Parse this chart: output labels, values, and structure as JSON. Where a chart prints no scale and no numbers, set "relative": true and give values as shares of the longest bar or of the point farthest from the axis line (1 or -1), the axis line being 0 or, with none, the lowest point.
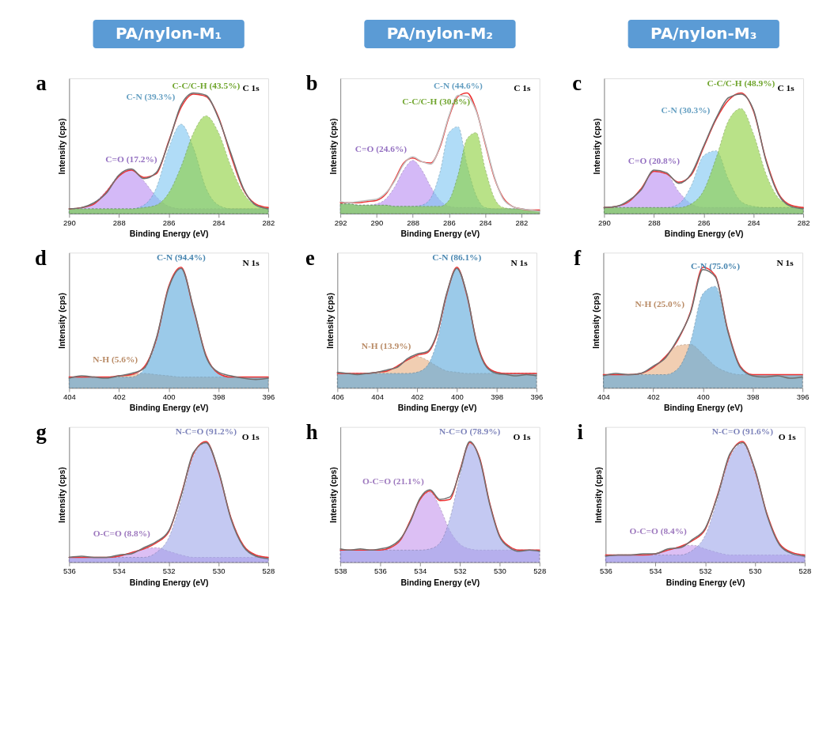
{
  "chart_data": [
    {
      "type": "area",
      "title": "PA/nylon-M₁",
      "xlabel": "Binding Energy (eV)",
      "ylabel": "Intensity (cps)",
      "relative": true,
      "grid": false,
      "legend": false,
      "xlim": [
        290,
        282
      ],
      "xticks": [
        290,
        288,
        286,
        284,
        282
      ],
      "x": [
        290,
        289.5,
        289,
        288.5,
        288,
        287.5,
        287,
        286.5,
        286,
        285.5,
        285,
        284.5,
        284,
        283.5,
        283,
        282.5,
        282
      ],
      "series": [
        {
          "type": "area",
          "color": "#b98cf2",
          "values": [
            0.04,
            0.05,
            0.09,
            0.19,
            0.32,
            0.37,
            0.27,
            0.14,
            0.06,
            0.04,
            0.04,
            0.04,
            0.04,
            0.04,
            0.04,
            0.04,
            0.04
          ]
        },
        {
          "type": "area",
          "color": "#7cc6f2",
          "values": [
            0.04,
            0.04,
            0.04,
            0.04,
            0.04,
            0.04,
            0.07,
            0.21,
            0.54,
            0.74,
            0.54,
            0.21,
            0.07,
            0.04,
            0.04,
            0.04,
            0.04
          ]
        },
        {
          "type": "area",
          "color": "#8ccf3a",
          "values": [
            0.04,
            0.04,
            0.04,
            0.04,
            0.04,
            0.04,
            0.05,
            0.07,
            0.17,
            0.39,
            0.67,
            0.81,
            0.67,
            0.39,
            0.17,
            0.07,
            0.05
          ]
        },
        {
          "type": "line",
          "color": "#ee3333",
          "values": [
            0.04,
            0.05,
            0.08,
            0.18,
            0.31,
            0.36,
            0.3,
            0.33,
            0.6,
            0.88,
            0.99,
            0.97,
            0.8,
            0.48,
            0.2,
            0.08,
            0.05
          ]
        },
        {
          "type": "line",
          "color": "#707070",
          "values": [
            0.04,
            0.05,
            0.09,
            0.17,
            0.32,
            0.37,
            0.29,
            0.34,
            0.59,
            0.9,
            1.0,
            0.98,
            0.79,
            0.5,
            0.21,
            0.07,
            0.04
          ]
        }
      ],
      "annotations": [
        "a",
        "C 1s",
        "C=O (17.2%)",
        "C-N (39.3%)",
        "C-C/C-H (43.5%)"
      ]
    },
    {
      "type": "area",
      "title": "PA/nylon-M₂",
      "xlabel": "Binding Energy (eV)",
      "ylabel": "Intensity (cps)",
      "relative": true,
      "grid": false,
      "legend": false,
      "xlim": [
        292,
        281
      ],
      "xticks": [
        292,
        290,
        288,
        286,
        284,
        282
      ],
      "x": [
        292,
        291.5,
        291,
        290.5,
        290,
        289.5,
        289,
        288.5,
        288,
        287.5,
        287,
        286.5,
        286,
        285.5,
        285,
        284.5,
        284,
        283.5,
        283,
        282.5,
        282,
        281.5,
        281
      ],
      "series": [
        {
          "type": "area",
          "color": "#b98cf2",
          "values": [
            0.08,
            0.08,
            0.07,
            0.07,
            0.08,
            0.12,
            0.22,
            0.36,
            0.44,
            0.36,
            0.22,
            0.11,
            0.06,
            0.05,
            0.05,
            0.05,
            0.04,
            0.04,
            0.04,
            0.04,
            0.04,
            0.03,
            0.03
          ]
        },
        {
          "type": "area",
          "color": "#7cc6f2",
          "values": [
            0.08,
            0.08,
            0.07,
            0.07,
            0.07,
            0.07,
            0.06,
            0.06,
            0.06,
            0.07,
            0.13,
            0.34,
            0.67,
            0.72,
            0.4,
            0.15,
            0.05,
            0.04,
            0.04,
            0.04,
            0.04,
            0.03,
            0.03
          ]
        },
        {
          "type": "area",
          "color": "#8ccf3a",
          "values": [
            0.08,
            0.08,
            0.07,
            0.07,
            0.07,
            0.07,
            0.06,
            0.06,
            0.06,
            0.06,
            0.06,
            0.06,
            0.11,
            0.32,
            0.62,
            0.67,
            0.37,
            0.13,
            0.05,
            0.04,
            0.04,
            0.03,
            0.03
          ]
        },
        {
          "type": "line",
          "color": "#ee3333",
          "values": [
            0.09,
            0.09,
            0.09,
            0.1,
            0.11,
            0.16,
            0.28,
            0.42,
            0.46,
            0.43,
            0.42,
            0.55,
            0.8,
            0.97,
            1.0,
            0.86,
            0.58,
            0.3,
            0.13,
            0.06,
            0.04,
            0.03,
            0.03
          ]
        },
        {
          "type": "line",
          "color": "#c0c0c0",
          "values": [
            0.1,
            0.09,
            0.1,
            0.11,
            0.12,
            0.17,
            0.27,
            0.41,
            0.47,
            0.43,
            0.41,
            0.56,
            0.81,
            0.98,
            0.97,
            0.85,
            0.59,
            0.31,
            0.12,
            0.06,
            0.04,
            0.03,
            0.02
          ]
        }
      ],
      "annotations": [
        "b",
        "C 1s",
        "C=O (24.6%)",
        "C-N (44.6%)",
        "C-C/C-H (30.8%)"
      ]
    },
    {
      "type": "area",
      "title": "PA/nylon-M₃",
      "xlabel": "Binding Energy (eV)",
      "ylabel": "Intensity (cps)",
      "relative": true,
      "grid": false,
      "legend": false,
      "xlim": [
        290,
        282
      ],
      "xticks": [
        290,
        288,
        286,
        284,
        282
      ],
      "x": [
        290,
        289.5,
        289,
        288.5,
        288,
        287.5,
        287,
        286.5,
        286,
        285.5,
        285,
        284.5,
        284,
        283.5,
        283,
        282.5,
        282
      ],
      "series": [
        {
          "type": "area",
          "color": "#b98cf2",
          "values": [
            0.05,
            0.06,
            0.1,
            0.21,
            0.35,
            0.33,
            0.18,
            0.08,
            0.05,
            0.05,
            0.05,
            0.05,
            0.05,
            0.05,
            0.05,
            0.05,
            0.05
          ]
        },
        {
          "type": "area",
          "color": "#7cc6f2",
          "values": [
            0.05,
            0.05,
            0.05,
            0.05,
            0.05,
            0.05,
            0.08,
            0.23,
            0.48,
            0.52,
            0.28,
            0.1,
            0.06,
            0.05,
            0.05,
            0.05,
            0.05
          ]
        },
        {
          "type": "area",
          "color": "#8ccf3a",
          "values": [
            0.05,
            0.05,
            0.05,
            0.05,
            0.05,
            0.05,
            0.05,
            0.08,
            0.19,
            0.46,
            0.77,
            0.87,
            0.66,
            0.33,
            0.13,
            0.07,
            0.05
          ]
        },
        {
          "type": "line",
          "color": "#ee3333",
          "values": [
            0.05,
            0.06,
            0.1,
            0.21,
            0.35,
            0.33,
            0.26,
            0.32,
            0.55,
            0.78,
            0.94,
            1.0,
            0.85,
            0.45,
            0.17,
            0.07,
            0.05
          ]
        },
        {
          "type": "line",
          "color": "#707070",
          "values": [
            0.05,
            0.06,
            0.11,
            0.2,
            0.36,
            0.34,
            0.25,
            0.33,
            0.56,
            0.79,
            0.96,
            0.99,
            0.86,
            0.44,
            0.16,
            0.06,
            0.04
          ]
        }
      ],
      "annotations": [
        "c",
        "C 1s",
        "C=O (20.8%)",
        "C-N (30.3%)",
        "C-C/C-H (48.9%)"
      ]
    },
    {
      "type": "area",
      "xlabel": "Binding Energy (eV)",
      "ylabel": "Intensity (cps)",
      "relative": true,
      "grid": false,
      "legend": false,
      "xlim": [
        404,
        396
      ],
      "xticks": [
        404,
        402,
        400,
        398,
        396
      ],
      "x": [
        404,
        403.5,
        403,
        402.5,
        402,
        401.5,
        401,
        400.5,
        400,
        399.5,
        399,
        398.5,
        398,
        397.5,
        397,
        396.5,
        396
      ],
      "series": [
        {
          "type": "area",
          "color": "#e8ae80",
          "values": [
            0.09,
            0.09,
            0.09,
            0.09,
            0.1,
            0.11,
            0.12,
            0.11,
            0.1,
            0.09,
            0.09,
            0.09,
            0.09,
            0.09,
            0.09,
            0.09,
            0.09
          ]
        },
        {
          "type": "area",
          "color": "#5aa8dc",
          "values": [
            0.09,
            0.09,
            0.09,
            0.09,
            0.09,
            0.09,
            0.15,
            0.38,
            0.82,
            0.99,
            0.64,
            0.26,
            0.12,
            0.09,
            0.09,
            0.09,
            0.09
          ]
        },
        {
          "type": "line",
          "color": "#ee3333",
          "values": [
            0.09,
            0.09,
            0.09,
            0.09,
            0.1,
            0.11,
            0.17,
            0.4,
            0.84,
            1.0,
            0.65,
            0.27,
            0.12,
            0.09,
            0.09,
            0.09,
            0.09
          ]
        },
        {
          "type": "line",
          "color": "#707070",
          "values": [
            0.08,
            0.1,
            0.09,
            0.08,
            0.1,
            0.12,
            0.16,
            0.41,
            0.83,
            0.99,
            0.66,
            0.26,
            0.13,
            0.1,
            0.08,
            0.07,
            0.08
          ]
        }
      ],
      "annotations": [
        "d",
        "N 1s",
        "N-H (5.6%)",
        "C-N (94.4%)"
      ]
    },
    {
      "type": "area",
      "xlabel": "Binding Energy (eV)",
      "ylabel": "Intensity (cps)",
      "relative": true,
      "grid": false,
      "legend": false,
      "xlim": [
        406,
        396
      ],
      "xticks": [
        406,
        404,
        402,
        400,
        398,
        396
      ],
      "x": [
        406,
        405.5,
        405,
        404.5,
        404,
        403.5,
        403,
        402.5,
        402,
        401.5,
        401,
        400.5,
        400,
        399.5,
        399,
        398.5,
        398,
        397.5,
        397,
        396.5,
        396
      ],
      "series": [
        {
          "type": "area",
          "color": "#e8ae80",
          "values": [
            0.12,
            0.12,
            0.12,
            0.12,
            0.13,
            0.14,
            0.18,
            0.23,
            0.26,
            0.23,
            0.18,
            0.14,
            0.13,
            0.12,
            0.12,
            0.12,
            0.12,
            0.12,
            0.12,
            0.12,
            0.12
          ]
        },
        {
          "type": "area",
          "color": "#5aa8dc",
          "values": [
            0.12,
            0.12,
            0.12,
            0.12,
            0.12,
            0.12,
            0.12,
            0.12,
            0.13,
            0.18,
            0.38,
            0.76,
            0.99,
            0.76,
            0.38,
            0.18,
            0.13,
            0.12,
            0.12,
            0.12,
            0.12
          ]
        },
        {
          "type": "line",
          "color": "#ee3333",
          "values": [
            0.12,
            0.12,
            0.12,
            0.12,
            0.13,
            0.14,
            0.18,
            0.23,
            0.27,
            0.29,
            0.44,
            0.78,
            1.0,
            0.77,
            0.38,
            0.18,
            0.13,
            0.12,
            0.12,
            0.12,
            0.12
          ]
        },
        {
          "type": "line",
          "color": "#707070",
          "values": [
            0.13,
            0.12,
            0.11,
            0.12,
            0.13,
            0.15,
            0.17,
            0.24,
            0.28,
            0.3,
            0.45,
            0.79,
            0.99,
            0.78,
            0.37,
            0.17,
            0.12,
            0.11,
            0.1,
            0.11,
            0.1
          ]
        }
      ],
      "annotations": [
        "e",
        "N 1s",
        "N-H (13.9%)",
        "C-N (86.1%)"
      ]
    },
    {
      "type": "area",
      "xlabel": "Binding Energy (eV)",
      "ylabel": "Intensity (cps)",
      "relative": true,
      "grid": false,
      "legend": false,
      "xlim": [
        404,
        396
      ],
      "xticks": [
        404,
        402,
        400,
        398,
        396
      ],
      "x": [
        404,
        403.5,
        403,
        402.5,
        402,
        401.5,
        401,
        400.5,
        400,
        399.5,
        399,
        398.5,
        398,
        397.5,
        397,
        396.5,
        396
      ],
      "series": [
        {
          "type": "area",
          "color": "#e8ae80",
          "values": [
            0.11,
            0.11,
            0.11,
            0.12,
            0.17,
            0.26,
            0.35,
            0.36,
            0.28,
            0.18,
            0.13,
            0.11,
            0.11,
            0.11,
            0.11,
            0.11,
            0.11
          ]
        },
        {
          "type": "area",
          "color": "#5aa8dc",
          "values": [
            0.11,
            0.11,
            0.11,
            0.11,
            0.11,
            0.11,
            0.16,
            0.38,
            0.78,
            0.84,
            0.46,
            0.18,
            0.11,
            0.11,
            0.11,
            0.11,
            0.11
          ]
        },
        {
          "type": "line",
          "color": "#ee3333",
          "values": [
            0.11,
            0.11,
            0.11,
            0.12,
            0.17,
            0.26,
            0.4,
            0.63,
            1.0,
            0.93,
            0.48,
            0.18,
            0.11,
            0.11,
            0.11,
            0.11,
            0.11
          ]
        },
        {
          "type": "line",
          "color": "#707070",
          "values": [
            0.1,
            0.12,
            0.11,
            0.12,
            0.18,
            0.25,
            0.41,
            0.62,
            0.98,
            0.92,
            0.47,
            0.17,
            0.1,
            0.09,
            0.1,
            0.08,
            0.09
          ]
        }
      ],
      "annotations": [
        "f",
        "N 1s",
        "N-H (25.0%)",
        "C-N (75.0%)"
      ]
    },
    {
      "type": "area",
      "xlabel": "Binding Energy (eV)",
      "ylabel": "Intensity (cps)",
      "relative": true,
      "grid": false,
      "legend": false,
      "xlim": [
        536,
        528
      ],
      "xticks": [
        536,
        534,
        532,
        530,
        528
      ],
      "x": [
        536,
        535.5,
        535,
        534.5,
        534,
        533.5,
        533,
        532.5,
        532,
        531.5,
        531,
        530.5,
        530,
        529.5,
        529,
        528.5,
        528
      ],
      "series": [
        {
          "type": "area",
          "color": "#c596ee",
          "values": [
            0.04,
            0.04,
            0.04,
            0.04,
            0.05,
            0.08,
            0.11,
            0.12,
            0.09,
            0.06,
            0.04,
            0.04,
            0.04,
            0.04,
            0.04,
            0.04,
            0.04
          ]
        },
        {
          "type": "area",
          "color": "#9ea6ea",
          "values": [
            0.04,
            0.04,
            0.04,
            0.04,
            0.04,
            0.04,
            0.04,
            0.08,
            0.2,
            0.51,
            0.88,
            0.99,
            0.74,
            0.37,
            0.14,
            0.06,
            0.04
          ]
        },
        {
          "type": "line",
          "color": "#ee3333",
          "values": [
            0.04,
            0.04,
            0.04,
            0.04,
            0.05,
            0.08,
            0.11,
            0.16,
            0.25,
            0.56,
            0.9,
            1.0,
            0.75,
            0.37,
            0.14,
            0.06,
            0.04
          ]
        },
        {
          "type": "line",
          "color": "#707070",
          "values": [
            0.04,
            0.05,
            0.04,
            0.04,
            0.06,
            0.07,
            0.12,
            0.17,
            0.26,
            0.55,
            0.91,
            0.99,
            0.76,
            0.36,
            0.13,
            0.05,
            0.03
          ]
        }
      ],
      "annotations": [
        "g",
        "O 1s",
        "O-C=O (8.8%)",
        "N-C=O (91.2%)"
      ]
    },
    {
      "type": "area",
      "xlabel": "Binding Energy (eV)",
      "ylabel": "Intensity (cps)",
      "relative": true,
      "grid": false,
      "legend": false,
      "xlim": [
        538,
        528
      ],
      "xticks": [
        538,
        536,
        534,
        532,
        530,
        528
      ],
      "x": [
        538,
        537.5,
        537,
        536.5,
        536,
        535.5,
        535,
        534.5,
        534,
        533.5,
        533,
        532.5,
        532,
        531.5,
        531,
        530.5,
        530,
        529.5,
        529,
        528.5,
        528
      ],
      "series": [
        {
          "type": "area",
          "color": "#c596ee",
          "values": [
            0.1,
            0.1,
            0.1,
            0.1,
            0.1,
            0.12,
            0.18,
            0.34,
            0.52,
            0.58,
            0.45,
            0.26,
            0.15,
            0.11,
            0.1,
            0.1,
            0.1,
            0.1,
            0.1,
            0.1,
            0.1
          ]
        },
        {
          "type": "area",
          "color": "#9ea6ea",
          "values": [
            0.1,
            0.1,
            0.1,
            0.1,
            0.1,
            0.1,
            0.1,
            0.1,
            0.1,
            0.11,
            0.16,
            0.36,
            0.71,
            0.98,
            0.86,
            0.49,
            0.22,
            0.13,
            0.1,
            0.1,
            0.1
          ]
        },
        {
          "type": "line",
          "color": "#ee3333",
          "values": [
            0.1,
            0.1,
            0.1,
            0.1,
            0.1,
            0.12,
            0.18,
            0.34,
            0.52,
            0.59,
            0.51,
            0.52,
            0.76,
            0.99,
            0.86,
            0.49,
            0.22,
            0.13,
            0.1,
            0.1,
            0.1
          ]
        },
        {
          "type": "line",
          "color": "#707070",
          "values": [
            0.11,
            0.1,
            0.11,
            0.1,
            0.11,
            0.13,
            0.19,
            0.33,
            0.53,
            0.6,
            0.52,
            0.54,
            0.75,
            1.0,
            0.85,
            0.48,
            0.21,
            0.12,
            0.09,
            0.1,
            0.09
          ]
        }
      ],
      "annotations": [
        "h",
        "O 1s",
        "O-C=O (21.1%)",
        "N-C=O (78.9%)"
      ]
    },
    {
      "type": "area",
      "xlabel": "Binding Energy (eV)",
      "ylabel": "Intensity (cps)",
      "relative": true,
      "grid": false,
      "legend": false,
      "xlim": [
        536,
        528
      ],
      "xticks": [
        536,
        534,
        532,
        530,
        528
      ],
      "x": [
        536,
        535.5,
        535,
        534.5,
        534,
        533.5,
        533,
        532.5,
        532,
        531.5,
        531,
        530.5,
        530,
        529.5,
        529,
        528.5,
        528
      ],
      "series": [
        {
          "type": "area",
          "color": "#c596ee",
          "values": [
            0.06,
            0.06,
            0.06,
            0.06,
            0.07,
            0.1,
            0.13,
            0.14,
            0.11,
            0.08,
            0.06,
            0.06,
            0.06,
            0.06,
            0.06,
            0.06,
            0.06
          ]
        },
        {
          "type": "area",
          "color": "#9ea6ea",
          "values": [
            0.06,
            0.06,
            0.06,
            0.06,
            0.06,
            0.06,
            0.06,
            0.1,
            0.22,
            0.52,
            0.87,
            0.98,
            0.74,
            0.38,
            0.15,
            0.08,
            0.06
          ]
        },
        {
          "type": "line",
          "color": "#ee3333",
          "values": [
            0.06,
            0.06,
            0.06,
            0.06,
            0.07,
            0.1,
            0.13,
            0.18,
            0.27,
            0.56,
            0.89,
            1.0,
            0.76,
            0.39,
            0.15,
            0.08,
            0.06
          ]
        },
        {
          "type": "line",
          "color": "#707070",
          "values": [
            0.05,
            0.06,
            0.06,
            0.07,
            0.07,
            0.11,
            0.12,
            0.19,
            0.28,
            0.55,
            0.9,
            0.99,
            0.77,
            0.38,
            0.14,
            0.07,
            0.05
          ]
        }
      ],
      "annotations": [
        "i",
        "O 1s",
        "O-C=O (8.4%)",
        "N-C=O (91.6%)"
      ]
    }
  ]
}
